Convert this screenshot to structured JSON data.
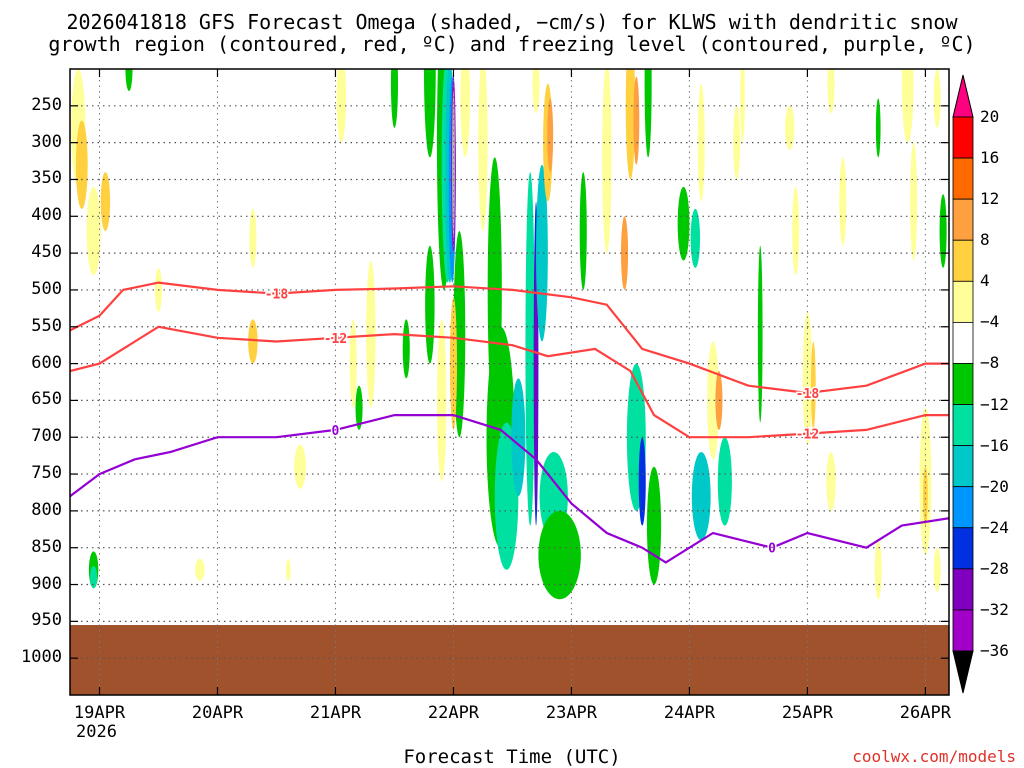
{
  "title": {
    "line1": "2026041818 GFS Forecast Omega (shaded, −cm/s) for KLWS with dendritic snow",
    "line2": "growth region (contoured, red, ºC) and freezing level (contoured, purple, ºC)"
  },
  "credit": "coolwx.com/models",
  "colors": {
    "ground": "#a0522d",
    "dendritic_contour": "#ff4040",
    "freezing_contour": "#9400d3",
    "grid": "#888888"
  },
  "chart_data": {
    "type": "time-height-section",
    "xlabel": "Forecast Time (UTC)",
    "ylabel": "",
    "x_ticks": [
      "19APR",
      "20APR",
      "21APR",
      "22APR",
      "23APR",
      "24APR",
      "25APR",
      "26APR"
    ],
    "x_year": "2026",
    "x_range_days": [
      0.75,
      8.2
    ],
    "y_ticks": [
      "250",
      "300",
      "350",
      "400",
      "450",
      "500",
      "550",
      "600",
      "650",
      "700",
      "750",
      "800",
      "850",
      "900",
      "950",
      "1000"
    ],
    "y_range_hpa": [
      200,
      1050
    ],
    "colorbar": {
      "labels": [
        "20",
        "16",
        "12",
        "8",
        "4",
        "−4",
        "−8",
        "−12",
        "−16",
        "−20",
        "−24",
        "−28",
        "−32",
        "−36"
      ],
      "colors": [
        "#ff0000",
        "#ff6a00",
        "#ffa040",
        "#ffd040",
        "#ffff99",
        "#ffffff",
        "#00c800",
        "#00e0a0",
        "#00c8c8",
        "#0096ff",
        "#0030e0",
        "#8000c0",
        "#a000c8",
        "#b4b4b4"
      ],
      "top_color": "#ff0080",
      "bottom_color": "#000000"
    },
    "contours": [
      {
        "name": "-18",
        "label": "-18",
        "color": "#ff4040",
        "x": [
          0.75,
          1.0,
          1.2,
          1.5,
          2.0,
          2.5,
          3.0,
          3.5,
          4.0,
          4.5,
          5.0,
          5.3,
          5.6,
          6.0,
          6.5,
          7.0,
          7.5,
          8.0,
          8.2
        ],
        "y": [
          555,
          535,
          500,
          490,
          500,
          505,
          500,
          498,
          495,
          500,
          510,
          520,
          580,
          600,
          630,
          640,
          630,
          600,
          600
        ]
      },
      {
        "name": "-12",
        "label": "-12",
        "color": "#ff4040",
        "x": [
          0.75,
          1.0,
          1.3,
          1.5,
          2.0,
          2.5,
          3.0,
          3.5,
          4.0,
          4.5,
          4.8,
          5.2,
          5.5,
          5.7,
          6.0,
          6.5,
          7.0,
          7.5,
          8.0,
          8.2
        ],
        "y": [
          610,
          600,
          570,
          550,
          565,
          570,
          565,
          560,
          565,
          575,
          590,
          580,
          610,
          670,
          700,
          700,
          695,
          690,
          670,
          670
        ]
      },
      {
        "name": "0",
        "label": "0",
        "color": "#9400d3",
        "x": [
          0.75,
          1.0,
          1.3,
          1.6,
          2.0,
          2.5,
          3.0,
          3.5,
          4.0,
          4.4,
          4.7,
          5.0,
          5.3,
          5.6,
          5.8,
          6.2,
          6.7,
          7.0,
          7.5,
          7.8,
          8.2
        ],
        "y": [
          780,
          750,
          730,
          720,
          700,
          700,
          690,
          670,
          670,
          690,
          730,
          790,
          830,
          850,
          870,
          830,
          850,
          830,
          850,
          820,
          810
        ]
      }
    ],
    "ground_level_hpa": 955
  }
}
